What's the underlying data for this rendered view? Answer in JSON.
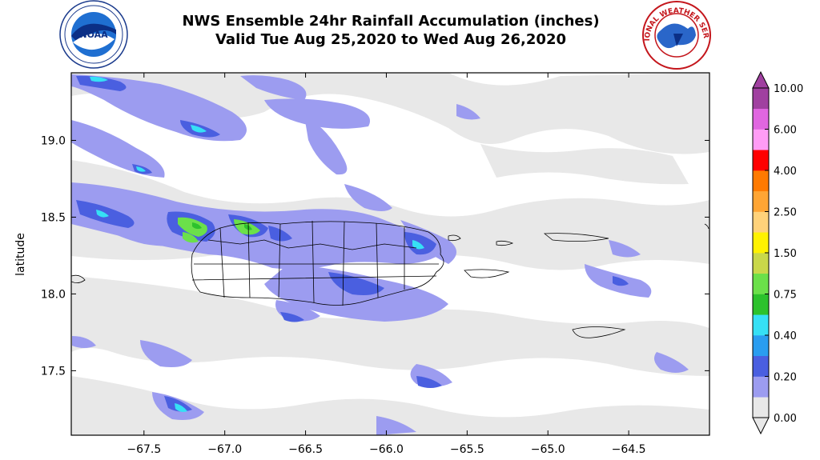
{
  "header": {
    "title_line1": "NWS Ensemble 24hr Rainfall Accumulation (inches)",
    "title_line2": "Valid Tue Aug 25,2020 to Wed Aug 26,2020",
    "left_logo": "noaa-logo",
    "left_logo_text": "NOAA",
    "right_logo": "national-weather-service-logo",
    "right_logo_text": "NATIONAL WEATHER SERVICE"
  },
  "map": {
    "ylabel": "latitude",
    "xlabel": "",
    "x_ticks": [
      "−67.5",
      "−67.0",
      "−66.5",
      "−66.0",
      "−65.5",
      "−65.0",
      "−64.5"
    ],
    "x_tick_values": [
      -67.5,
      -67.0,
      -66.5,
      -66.0,
      -65.5,
      -65.0,
      -64.5
    ],
    "y_ticks": [
      "17.5",
      "18.0",
      "18.5",
      "19.0"
    ],
    "y_tick_values": [
      17.5,
      18.0,
      18.5,
      19.0
    ],
    "xlim": [
      -67.95,
      -64.0
    ],
    "ylim": [
      17.08,
      19.44
    ],
    "background_color": "#ffffff"
  },
  "colorbar": {
    "labels": [
      "0.00",
      "0.20",
      "0.40",
      "0.75",
      "1.50",
      "2.50",
      "4.00",
      "6.00",
      "10.00"
    ],
    "levels": [
      0.0,
      0.1,
      0.2,
      0.3,
      0.4,
      0.5,
      0.75,
      1.0,
      1.5,
      2.0,
      2.5,
      3.0,
      4.0,
      5.0,
      6.0,
      8.0,
      10.0
    ],
    "colors": [
      "#e8e8e8",
      "#9c9cf0",
      "#4a5fe0",
      "#2a9df0",
      "#36e0f5",
      "#2cc22c",
      "#6be04a",
      "#c9d84a",
      "#fff200",
      "#ffd27a",
      "#ffa534",
      "#ff7a00",
      "#ff0000",
      "#ff9cf5",
      "#e066e0",
      "#a040a0"
    ],
    "extend": "both"
  }
}
